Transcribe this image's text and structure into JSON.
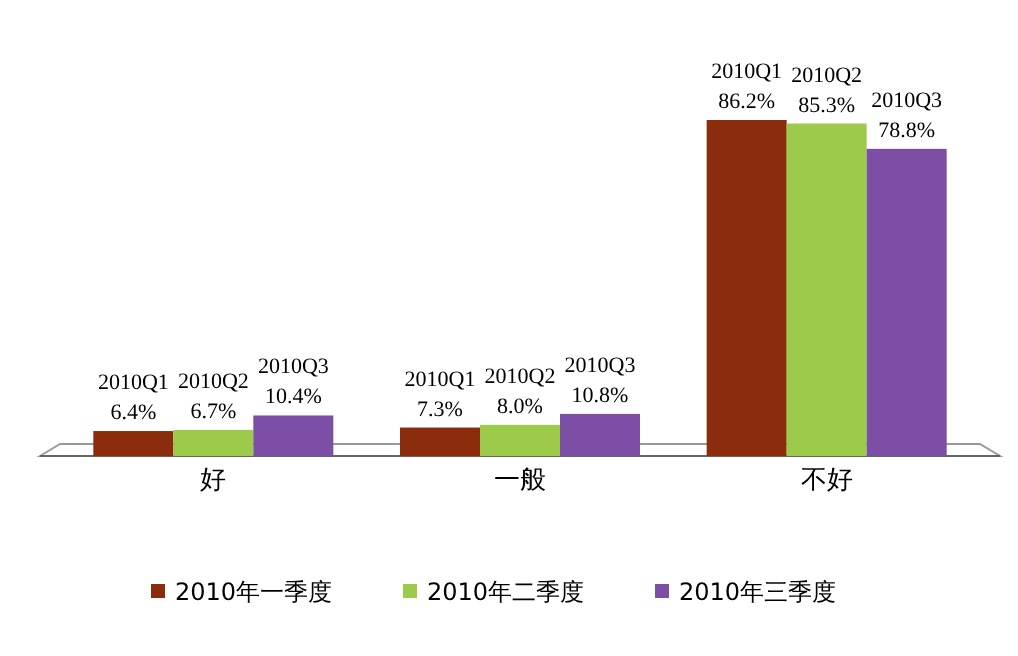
{
  "chart_data": {
    "type": "bar",
    "categories": [
      "好",
      "一般",
      "不好"
    ],
    "series": [
      {
        "name": "2010年一季度",
        "color": "#8b2c0c",
        "values": [
          6.4,
          7.3,
          86.2
        ],
        "value_labels": [
          "2010Q1\n6.4%",
          "2010Q1\n7.3%",
          "2010Q1\n86.2%"
        ]
      },
      {
        "name": "2010年二季度",
        "color": "#9ccb4c",
        "values": [
          6.7,
          8.0,
          85.3
        ],
        "value_labels": [
          "2010Q2\n6.7%",
          "2010Q2\n8.0%",
          "2010Q2\n85.3%"
        ]
      },
      {
        "name": "2010年三季度",
        "color": "#7d4ea6",
        "values": [
          10.4,
          10.8,
          78.8
        ],
        "value_labels": [
          "2010Q3\n10.4%",
          "2010Q3\n10.8%",
          "2010Q3\n78.8%"
        ]
      }
    ],
    "legend": "bottom",
    "grid": false
  }
}
